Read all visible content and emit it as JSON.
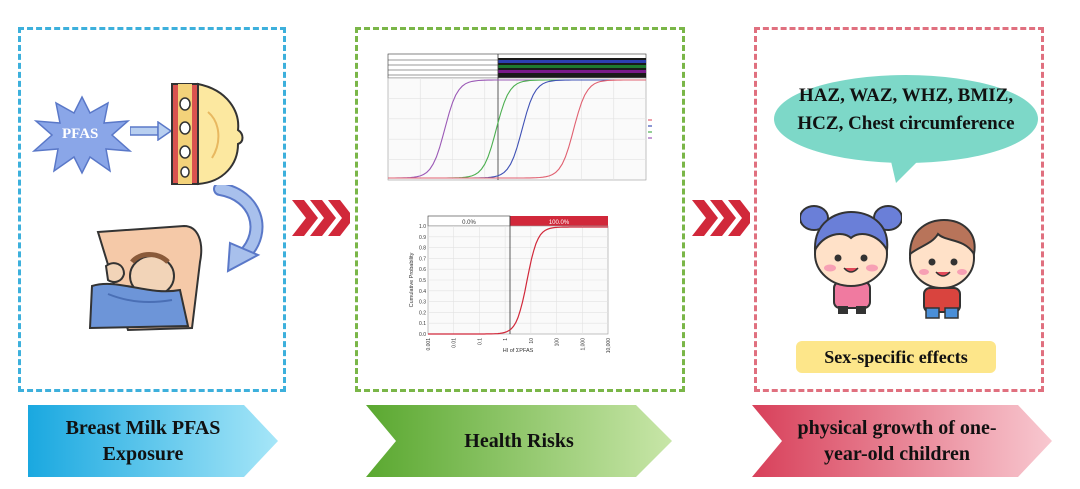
{
  "panels": {
    "exposure": {
      "pfas_label": "PFAS",
      "banner_line1": "Breast Milk PFAS",
      "banner_line2": "Exposure",
      "border_color": "#3db0dc"
    },
    "risk": {
      "banner": "Health Risks",
      "border_color": "#7ab648"
    },
    "growth": {
      "bubble_line1": "HAZ, WAZ, WHZ, BMIZ,",
      "bubble_line2": "HCZ, Chest circumference",
      "badge": "Sex-specific effects",
      "banner_line1": "physical growth of one-",
      "banner_line2": "year-old children",
      "border_color": "#e0707f"
    }
  },
  "arrows": {
    "color": "#d1283a"
  },
  "chart_data": [
    {
      "type": "line",
      "series": [
        {
          "color": "#9b59b6",
          "midpoint": 0.22
        },
        {
          "color": "#4caf50",
          "midpoint": 0.42
        },
        {
          "color": "#3f51b5",
          "midpoint": 0.52
        },
        {
          "color": "#e06070",
          "midpoint": 0.72
        }
      ],
      "ylim": [
        0,
        1
      ]
    },
    {
      "type": "line",
      "header_left": "0.0%",
      "header_right": "100.0%",
      "ytick_labels": [
        "0.0",
        "0.1",
        "0.2",
        "0.3",
        "0.4",
        "0.5",
        "0.6",
        "0.7",
        "0.8",
        "0.9",
        "1.0"
      ],
      "xtick_labels": [
        "0.001",
        "0.01",
        "0.1",
        "1",
        "10",
        "100",
        "1,000",
        "10,000"
      ],
      "ylabel": "Cumulative Probability",
      "xlabel": "HI of ΣPFAS",
      "series": [
        {
          "color": "#d1283a",
          "midpoint": 0.55
        }
      ],
      "ylim": [
        0,
        1
      ]
    }
  ]
}
